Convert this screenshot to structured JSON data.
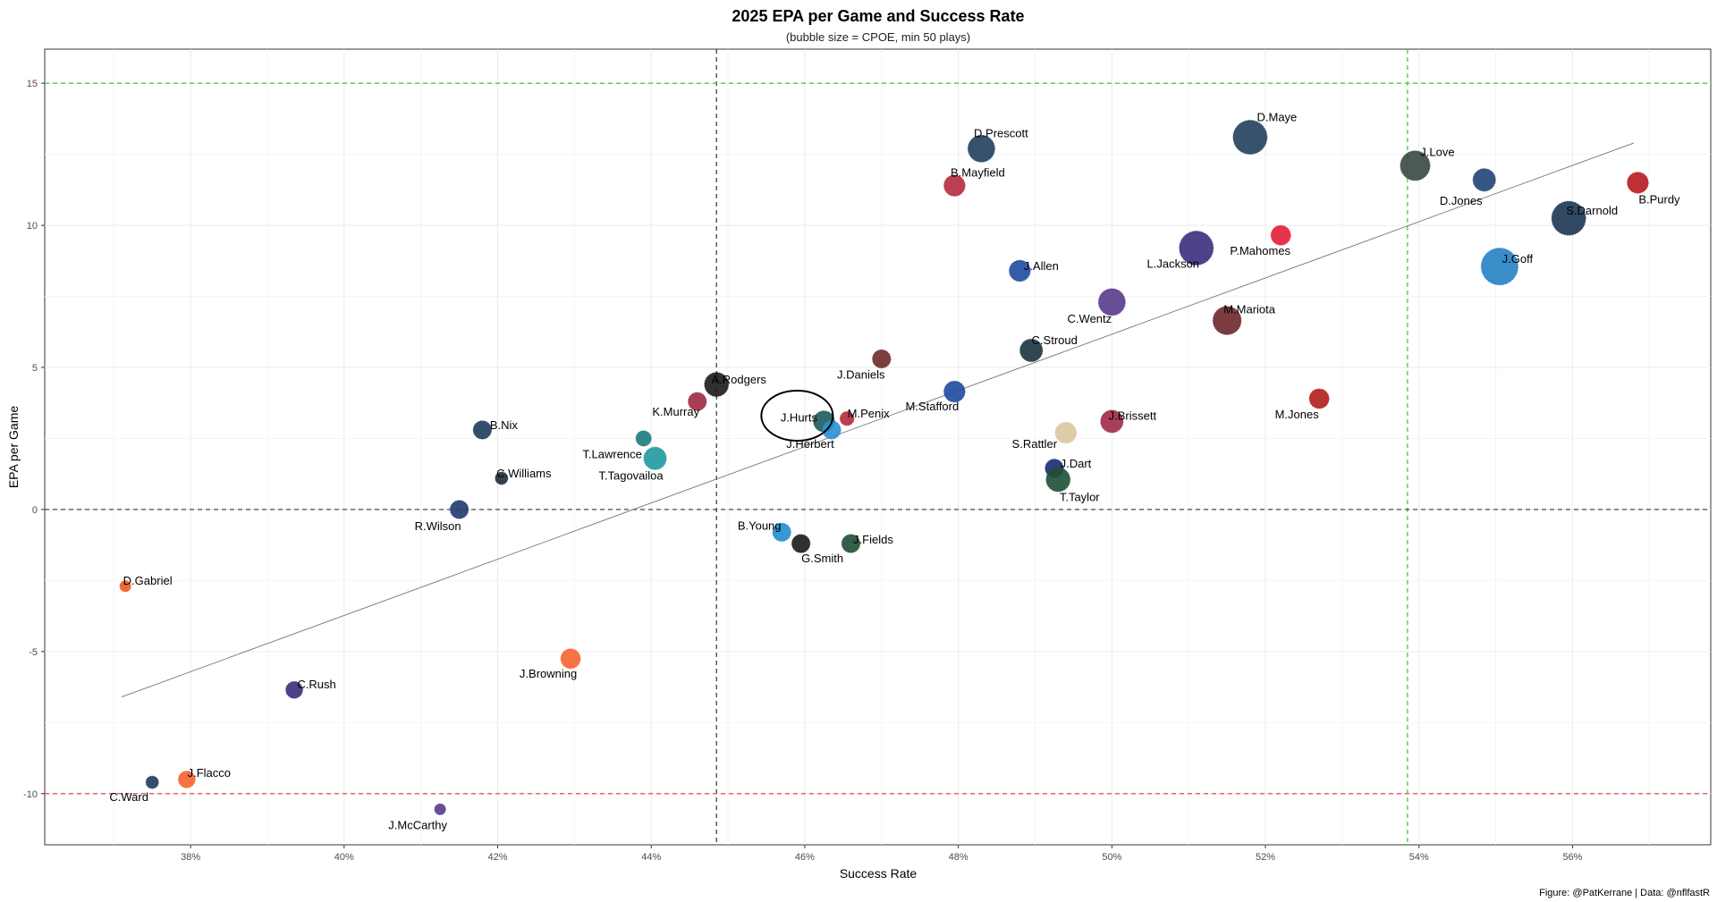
{
  "chart_data": {
    "type": "scatter",
    "title": "2025 EPA per Game and Success Rate",
    "subtitle": "(bubble size = CPOE, min 50 plays)",
    "xlabel": "Success Rate",
    "ylabel": "EPA per Game",
    "caption": "Figure: @PatKerrane | Data: @nflfastR",
    "xlim": [
      36.1,
      57.8
    ],
    "ylim": [
      -11.8,
      16.2
    ],
    "x_ticks": [
      38,
      40,
      42,
      44,
      46,
      48,
      50,
      52,
      54,
      56
    ],
    "x_tick_labels": [
      "38%",
      "40%",
      "42%",
      "44%",
      "46%",
      "48%",
      "50%",
      "52%",
      "54%",
      "56%"
    ],
    "y_ticks": [
      -10,
      -5,
      0,
      5,
      10,
      15
    ],
    "y_tick_labels": [
      "-10",
      "-5",
      "0",
      "5",
      "10",
      "15"
    ],
    "grid": true,
    "reference_lines": [
      {
        "axis": "x",
        "value": 44.85,
        "color": "#333333"
      },
      {
        "axis": "x",
        "value": 53.85,
        "color": "#33cc33"
      },
      {
        "axis": "y",
        "value": 0,
        "color": "#333333"
      },
      {
        "axis": "y",
        "value": 15,
        "color": "#33cc33"
      },
      {
        "axis": "y",
        "value": -10,
        "color": "#ee4444"
      }
    ],
    "trend_line": {
      "x": [
        37.1,
        56.8
      ],
      "y": [
        -6.6,
        12.9
      ],
      "color": "#777777"
    },
    "highlight": {
      "player": "J.Hurts",
      "x": 45.9,
      "y": 3.3
    },
    "points": [
      {
        "player": "D.Maye",
        "x": 51.8,
        "y": 13.1,
        "size": 10,
        "color": "#243f5c"
      },
      {
        "player": "D.Prescott",
        "x": 48.3,
        "y": 12.7,
        "size": 7.5,
        "color": "#213e5e"
      },
      {
        "player": "J.Love",
        "x": 53.95,
        "y": 12.1,
        "size": 8.5,
        "color": "#37483f"
      },
      {
        "player": "D.Jones",
        "x": 54.85,
        "y": 11.6,
        "size": 6,
        "color": "#1f4473"
      },
      {
        "player": "B.Purdy",
        "x": 56.85,
        "y": 11.5,
        "size": 5.5,
        "color": "#b7191f"
      },
      {
        "player": "B.Mayfield",
        "x": 47.95,
        "y": 11.4,
        "size": 5.5,
        "color": "#b22a3e"
      },
      {
        "player": "S.Darnold",
        "x": 55.95,
        "y": 10.25,
        "size": 10,
        "color": "#1c3553"
      },
      {
        "player": "P.Mahomes",
        "x": 52.2,
        "y": 9.65,
        "size": 5,
        "color": "#e21d38"
      },
      {
        "player": "L.Jackson",
        "x": 51.1,
        "y": 9.2,
        "size": 10,
        "color": "#3b2e7e"
      },
      {
        "player": "J.Goff",
        "x": 55.05,
        "y": 8.55,
        "size": 11,
        "color": "#2481c2"
      },
      {
        "player": "J.Allen",
        "x": 48.8,
        "y": 8.4,
        "size": 5.5,
        "color": "#1e4aa2"
      },
      {
        "player": "C.Wentz",
        "x": 50.0,
        "y": 7.3,
        "size": 7.5,
        "color": "#5a3a8c"
      },
      {
        "player": "M.Mariota",
        "x": 51.5,
        "y": 6.65,
        "size": 8,
        "color": "#6b2729"
      },
      {
        "player": "C.Stroud",
        "x": 48.95,
        "y": 5.6,
        "size": 6,
        "color": "#1a3440"
      },
      {
        "player": "J.Daniels",
        "x": 47.0,
        "y": 5.3,
        "size": 4.5,
        "color": "#6b2a2a"
      },
      {
        "player": "A.Rodgers",
        "x": 44.85,
        "y": 4.4,
        "size": 6.5,
        "color": "#1a1a1a"
      },
      {
        "player": "M.Stafford",
        "x": 47.95,
        "y": 4.15,
        "size": 5.5,
        "color": "#1f4aa0"
      },
      {
        "player": "M.Jones",
        "x": 52.7,
        "y": 3.9,
        "size": 5,
        "color": "#b01e1a"
      },
      {
        "player": "K.Murray",
        "x": 44.6,
        "y": 3.8,
        "size": 4.5,
        "color": "#9c2a44"
      },
      {
        "player": "M.Penix",
        "x": 46.55,
        "y": 3.2,
        "size": 3,
        "color": "#b22a3e"
      },
      {
        "player": "J.Hurts",
        "x": 46.25,
        "y": 3.1,
        "size": 5.5,
        "color": "#1e5a5a"
      },
      {
        "player": "J.Herbert",
        "x": 46.35,
        "y": 2.8,
        "size": 4.5,
        "color": "#2a8fd4"
      },
      {
        "player": "J.Brissett",
        "x": 50.0,
        "y": 3.1,
        "size": 6,
        "color": "#9e2a44"
      },
      {
        "player": "B.Nix",
        "x": 41.8,
        "y": 2.8,
        "size": 4.5,
        "color": "#1e3a5e"
      },
      {
        "player": "S.Rattler",
        "x": 49.4,
        "y": 2.7,
        "size": 5.5,
        "color": "#d8c6a0"
      },
      {
        "player": "T.Lawrence",
        "x": 43.9,
        "y": 2.5,
        "size": 3.5,
        "color": "#1a7a80"
      },
      {
        "player": "T.Tagovailoa",
        "x": 44.05,
        "y": 1.8,
        "size": 6,
        "color": "#1e9aa0"
      },
      {
        "player": "J.Dart",
        "x": 49.25,
        "y": 1.45,
        "size": 4.5,
        "color": "#1a2b70"
      },
      {
        "player": "C.Williams",
        "x": 42.05,
        "y": 1.1,
        "size": 2.5,
        "color": "#1f2a3a"
      },
      {
        "player": "T.Taylor",
        "x": 49.3,
        "y": 1.05,
        "size": 6.5,
        "color": "#1e4e35"
      },
      {
        "player": "R.Wilson",
        "x": 41.5,
        "y": 0.0,
        "size": 4.5,
        "color": "#22396e"
      },
      {
        "player": "B.Young",
        "x": 45.7,
        "y": -0.8,
        "size": 4.5,
        "color": "#1e8ecf"
      },
      {
        "player": "G.Smith",
        "x": 45.95,
        "y": -1.2,
        "size": 4.5,
        "color": "#1a1a1a"
      },
      {
        "player": "J.Fields",
        "x": 46.6,
        "y": -1.2,
        "size": 4.5,
        "color": "#1e4e35"
      },
      {
        "player": "D.Gabriel",
        "x": 37.15,
        "y": -2.7,
        "size": 2,
        "color": "#f05a20"
      },
      {
        "player": "J.Browning",
        "x": 42.95,
        "y": -5.25,
        "size": 5,
        "color": "#f56430"
      },
      {
        "player": "C.Rush",
        "x": 39.35,
        "y": -6.35,
        "size": 4,
        "color": "#3b2e7e"
      },
      {
        "player": "C.Ward",
        "x": 37.5,
        "y": -9.6,
        "size": 2.5,
        "color": "#1e3a5e"
      },
      {
        "player": "J.Flacco",
        "x": 37.95,
        "y": -9.5,
        "size": 4,
        "color": "#f56430"
      },
      {
        "player": "J.McCarthy",
        "x": 41.25,
        "y": -10.55,
        "size": 2,
        "color": "#5a3a8c"
      }
    ]
  }
}
